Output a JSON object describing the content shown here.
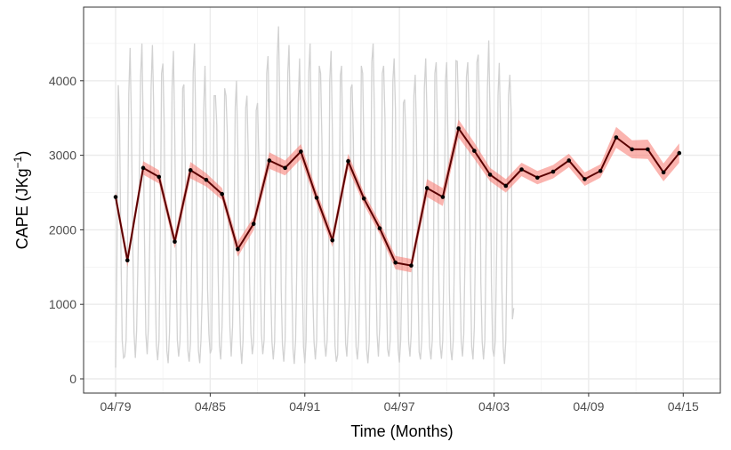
{
  "chart_data": {
    "type": "line",
    "xlabel": "Time (Months)",
    "ylabel": {
      "base": "CAPE (JKg",
      "sup": "−1",
      "close": ")"
    },
    "x_ticks": [
      "04/79",
      "04/85",
      "04/91",
      "04/97",
      "04/03",
      "04/09",
      "04/15"
    ],
    "y_ticks": [
      "0",
      "1000",
      "2000",
      "3000",
      "4000"
    ],
    "ylim": [
      -200,
      4950
    ],
    "grid": true,
    "annual_series": {
      "x": [
        1979.25,
        1980.0,
        1981.0,
        1982.0,
        1983.0,
        1984.0,
        1985.0,
        1986.0,
        1987.0,
        1988.0,
        1989.0,
        1990.0,
        1991.0,
        1992.0,
        1993.0,
        1994.0,
        1995.0,
        1996.0,
        1997.0,
        1998.0,
        1999.0,
        2000.0,
        2001.0,
        2002.0,
        2003.0,
        2004.0,
        2005.0,
        2006.0,
        2007.0,
        2008.0,
        2009.0,
        2010.0,
        2011.0,
        2012.0,
        2013.0,
        2014.0,
        2015.0
      ],
      "y": [
        2440,
        1590,
        2830,
        2710,
        1840,
        2800,
        2670,
        2480,
        1740,
        2080,
        2930,
        2830,
        3050,
        2430,
        1860,
        2920,
        2420,
        2020,
        1560,
        1520,
        2560,
        2440,
        3360,
        3060,
        2740,
        2590,
        2810,
        2700,
        2780,
        2930,
        2680,
        2790,
        3240,
        3080,
        3080,
        2770,
        3030
      ],
      "ci_half_width": [
        80,
        90,
        90,
        90,
        90,
        110,
        90,
        80,
        100,
        90,
        110,
        100,
        100,
        90,
        90,
        100,
        80,
        80,
        90,
        90,
        120,
        120,
        120,
        110,
        90,
        90,
        90,
        90,
        90,
        90,
        90,
        90,
        140,
        120,
        130,
        120,
        130
      ],
      "color": "#000000",
      "line_color": "#5a0000",
      "ribbon_color": "#f8766d"
    },
    "monthly_series": {
      "start": 1979.25,
      "step_months": 1,
      "y": [
        150,
        1600,
        3940,
        3500,
        1800,
        520,
        280,
        300,
        520,
        1580,
        3820,
        4440,
        3460,
        1900,
        620,
        280,
        640,
        1560,
        2600,
        4050,
        4500,
        3400,
        1850,
        600,
        330,
        700,
        1850,
        3900,
        4480,
        3650,
        1500,
        450,
        250,
        520,
        1900,
        4100,
        4230,
        3400,
        1300,
        380,
        210,
        620,
        1700,
        3900,
        4400,
        3300,
        1700,
        520,
        300,
        500,
        1500,
        3900,
        3950,
        2900,
        1200,
        380,
        230,
        480,
        1800,
        4100,
        4500,
        3400,
        1400,
        380,
        210,
        520,
        1200,
        3600,
        4200,
        3300,
        1200,
        600,
        340,
        400,
        2000,
        3800,
        3800,
        3400,
        1500,
        450,
        260,
        700,
        1600,
        3900,
        3800,
        3300,
        1700,
        700,
        300,
        700,
        1800,
        3640,
        4000,
        3100,
        1200,
        460,
        200,
        520,
        1800,
        3640,
        3800,
        3000,
        1300,
        600,
        330,
        480,
        1500,
        3600,
        3700,
        3000,
        1500,
        600,
        330,
        520,
        1900,
        4100,
        4330,
        3400,
        1300,
        500,
        260,
        500,
        1800,
        4300,
        4730,
        3600,
        1200,
        460,
        230,
        520,
        1950,
        4100,
        4480,
        3400,
        1400,
        400,
        200,
        520,
        1600,
        3700,
        4300,
        3300,
        1400,
        430,
        210,
        520,
        1900,
        4100,
        4500,
        3300,
        1200,
        500,
        260,
        520,
        1900,
        4200,
        4100,
        3200,
        1200,
        500,
        300,
        520,
        1550,
        4000,
        4400,
        3300,
        1500,
        440,
        230,
        320,
        1700,
        4070,
        4200,
        3000,
        1600,
        480,
        300,
        700,
        1100,
        3900,
        3950,
        3200,
        1300,
        430,
        260,
        520,
        1600,
        4200,
        4100,
        3100,
        1300,
        400,
        210,
        500,
        1900,
        4250,
        4500,
        3500,
        1600,
        600,
        300,
        700,
        1900,
        4100,
        4200,
        3500,
        1300,
        400,
        300,
        520,
        1800,
        4000,
        4300,
        3600,
        1300,
        400,
        220,
        520,
        1500,
        3700,
        3750,
        3200,
        1600,
        500,
        300,
        600,
        2000,
        3800,
        4080,
        3300,
        1400,
        360,
        260,
        520,
        1700,
        3900,
        4300,
        3500,
        1100,
        430,
        260,
        520,
        1900,
        4100,
        4250,
        3300,
        1300,
        460,
        270,
        520,
        1750,
        4000,
        4250,
        3200,
        1200,
        400,
        250,
        520,
        1900,
        4270,
        4260,
        3600,
        1400,
        500,
        300,
        600,
        1700,
        4050,
        4250,
        3600,
        1500,
        430,
        260,
        700,
        2000,
        4250,
        4350,
        3500,
        1300,
        500,
        260,
        520,
        1900,
        3900,
        4540,
        3500,
        1300,
        400,
        300,
        520,
        1700,
        3800,
        4240,
        3300,
        1200,
        420,
        200,
        520,
        1900,
        3800,
        4080,
        3600,
        800,
        950
      ]
    }
  }
}
